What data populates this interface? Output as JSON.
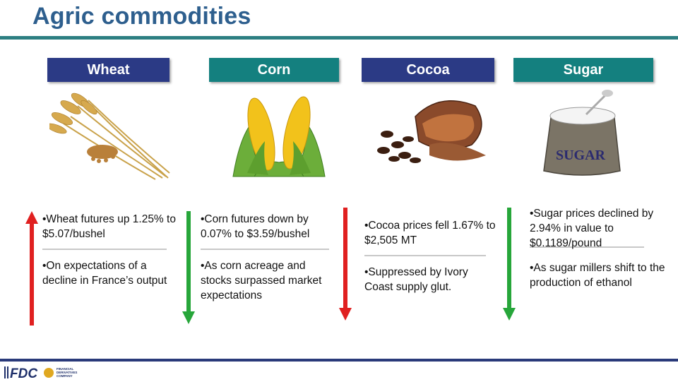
{
  "title": "Agric commodities",
  "colors": {
    "navy": "#2b3a85",
    "teal": "#14807f",
    "red": "#e02020",
    "green": "#27a63a"
  },
  "columns": [
    {
      "name": "Wheat",
      "direction": "up",
      "p1": "•Wheat futures up 1.25% to $5.07/bushel",
      "p2": "•On expectations of a decline in France’s output"
    },
    {
      "name": "Corn",
      "direction": "down",
      "p1": "•Corn futures down by 0.07%  to $3.59/bushel",
      "p2": "•As corn acreage and stocks surpassed market expectations"
    },
    {
      "name": "Cocoa",
      "direction": "down",
      "p1": "•Cocoa prices fell 1.67% to $2,505 MT",
      "p2": "•Suppressed by Ivory Coast supply glut."
    },
    {
      "name": "Sugar",
      "direction": "down",
      "p1": "•Sugar prices declined by 2.94% in value to $0.1189/pound",
      "p2": "•As sugar millers shift to the production of ethanol"
    }
  ],
  "sack_label": "SUGAR",
  "logo": {
    "mark": "FDC",
    "line1": "FINANCIAL",
    "line2": "DERIVATIVES",
    "line3": "COMPANY"
  }
}
